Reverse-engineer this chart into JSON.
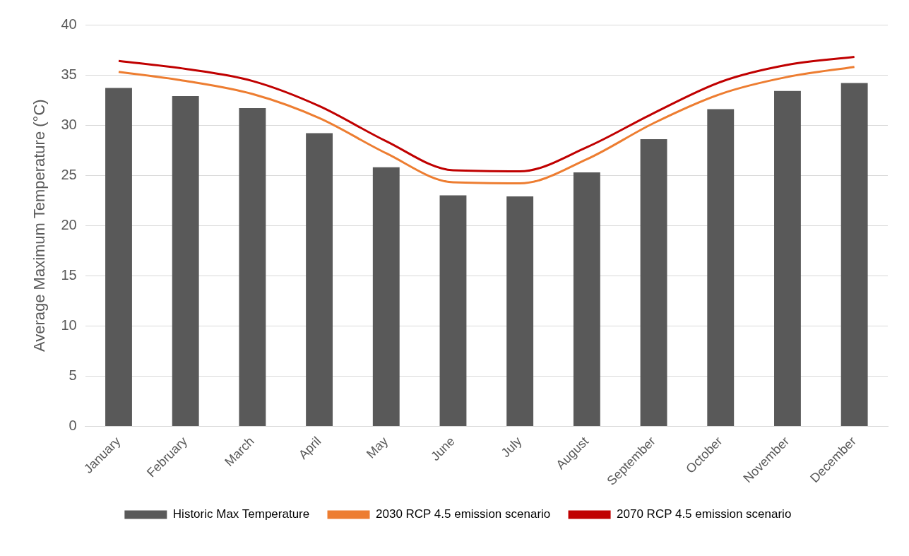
{
  "chart_data": {
    "type": "bar",
    "ylabel": "Average Maximum Temperature (°C)",
    "categories": [
      "January",
      "February",
      "March",
      "April",
      "May",
      "June",
      "July",
      "August",
      "September",
      "October",
      "November",
      "December"
    ],
    "series": [
      {
        "name": "Historic Max Temperature",
        "color": "#595959",
        "values": [
          33.7,
          32.9,
          31.7,
          29.2,
          25.8,
          23.0,
          22.9,
          25.3,
          28.6,
          31.6,
          33.4,
          34.2
        ]
      },
      {
        "name": "2030 RCP 4.5 emission scenario",
        "type": "line",
        "color": "#ed7d31",
        "values": [
          35.3,
          34.4,
          33.1,
          30.7,
          27.2,
          24.3,
          24.2,
          26.6,
          30.2,
          33.1,
          34.8,
          35.8
        ]
      },
      {
        "name": "2070 RCP 4.5 emission scenario",
        "type": "line",
        "color": "#c00000",
        "values": [
          36.4,
          35.6,
          34.4,
          31.9,
          28.4,
          25.5,
          25.4,
          27.8,
          31.2,
          34.3,
          36.0,
          36.8
        ]
      }
    ],
    "ylim": [
      0,
      40
    ],
    "yticks": [
      0,
      5,
      10,
      15,
      20,
      25,
      30,
      35,
      40
    ],
    "grid": "y",
    "legend": "bottom",
    "marker": "none",
    "line_style": "solid"
  }
}
